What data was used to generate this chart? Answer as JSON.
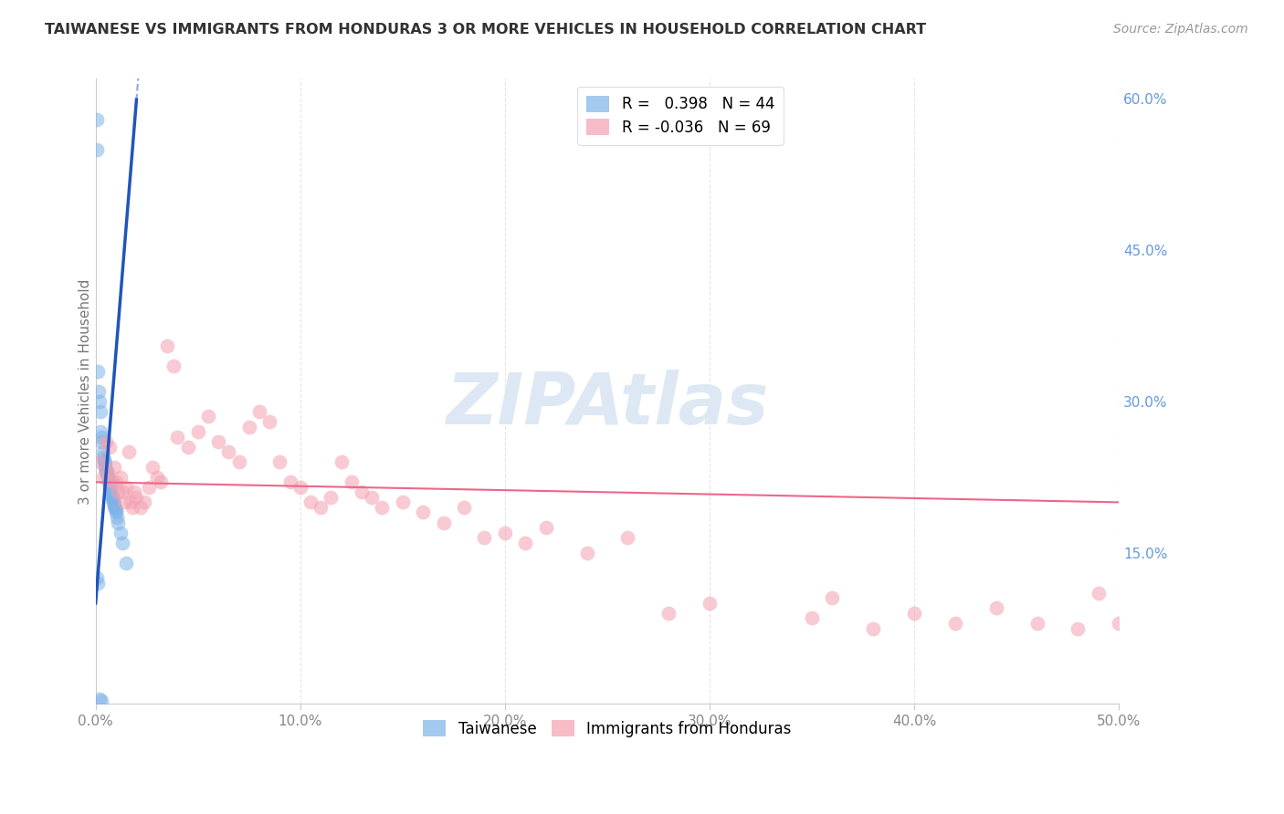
{
  "title": "TAIWANESE VS IMMIGRANTS FROM HONDURAS 3 OR MORE VEHICLES IN HOUSEHOLD CORRELATION CHART",
  "source": "Source: ZipAtlas.com",
  "ylabel_left": "3 or more Vehicles in Household",
  "xlim": [
    0.0,
    50.0
  ],
  "ylim": [
    0.0,
    62.0
  ],
  "y_plot_max": 60.0,
  "taiwanese_R": 0.398,
  "taiwanese_N": 44,
  "honduras_R": -0.036,
  "honduras_N": 69,
  "taiwanese_color": "#7EB3E8",
  "honduras_color": "#F4A0B0",
  "taiwanese_line_color": "#2255BB",
  "honduras_line_color": "#EE6688",
  "tw_x": [
    0.05,
    0.08,
    0.12,
    0.15,
    0.18,
    0.22,
    0.25,
    0.28,
    0.3,
    0.35,
    0.38,
    0.4,
    0.42,
    0.45,
    0.48,
    0.5,
    0.52,
    0.55,
    0.6,
    0.62,
    0.65,
    0.68,
    0.7,
    0.72,
    0.75,
    0.78,
    0.8,
    0.82,
    0.85,
    0.88,
    0.9,
    0.92,
    0.95,
    0.98,
    1.0,
    1.05,
    1.1,
    1.2,
    1.3,
    1.5,
    0.07,
    0.1,
    0.2,
    0.3
  ],
  "tw_y": [
    58.0,
    55.0,
    33.0,
    31.0,
    30.0,
    29.0,
    27.0,
    26.5,
    26.0,
    25.0,
    24.5,
    24.2,
    24.0,
    23.8,
    23.5,
    23.2,
    23.0,
    22.8,
    22.5,
    22.3,
    22.0,
    21.8,
    21.5,
    21.3,
    21.0,
    20.8,
    20.6,
    20.4,
    20.2,
    20.0,
    19.8,
    19.6,
    19.4,
    19.2,
    19.0,
    18.5,
    18.0,
    17.0,
    16.0,
    14.0,
    12.5,
    12.0,
    0.5,
    0.3
  ],
  "hn_x": [
    0.2,
    0.35,
    0.5,
    0.6,
    0.7,
    0.8,
    0.9,
    1.0,
    1.1,
    1.2,
    1.3,
    1.4,
    1.5,
    1.6,
    1.7,
    1.8,
    1.9,
    2.0,
    2.2,
    2.4,
    2.6,
    2.8,
    3.0,
    3.2,
    3.5,
    3.8,
    4.0,
    4.5,
    5.0,
    5.5,
    6.0,
    6.5,
    7.0,
    7.5,
    8.0,
    8.5,
    9.0,
    9.5,
    10.0,
    10.5,
    11.0,
    11.5,
    12.0,
    12.5,
    13.0,
    13.5,
    14.0,
    15.0,
    16.0,
    17.0,
    18.0,
    19.0,
    20.0,
    21.0,
    22.0,
    24.0,
    26.0,
    28.0,
    30.0,
    35.0,
    36.0,
    38.0,
    40.0,
    42.0,
    44.0,
    46.0,
    48.0,
    49.0,
    50.0
  ],
  "hn_y": [
    24.0,
    22.5,
    26.0,
    23.0,
    25.5,
    22.0,
    23.5,
    22.0,
    21.0,
    22.5,
    21.0,
    20.0,
    21.5,
    25.0,
    20.0,
    19.5,
    21.0,
    20.5,
    19.5,
    20.0,
    21.5,
    23.5,
    22.5,
    22.0,
    35.5,
    33.5,
    26.5,
    25.5,
    27.0,
    28.5,
    26.0,
    25.0,
    24.0,
    27.5,
    29.0,
    28.0,
    24.0,
    22.0,
    21.5,
    20.0,
    19.5,
    20.5,
    24.0,
    22.0,
    21.0,
    20.5,
    19.5,
    20.0,
    19.0,
    18.0,
    19.5,
    16.5,
    17.0,
    16.0,
    17.5,
    15.0,
    16.5,
    9.0,
    10.0,
    8.5,
    10.5,
    7.5,
    9.0,
    8.0,
    9.5,
    8.0,
    7.5,
    11.0,
    8.0
  ],
  "right_y_ticks": [
    0,
    15,
    30,
    45,
    60
  ],
  "right_y_labels": [
    "",
    "15.0%",
    "30.0%",
    "45.0%",
    "60.0%"
  ],
  "x_ticks": [
    0,
    10,
    20,
    30,
    40,
    50
  ],
  "x_labels": [
    "0.0%",
    "10.0%",
    "20.0%",
    "30.0%",
    "40.0%",
    "50.0%"
  ]
}
